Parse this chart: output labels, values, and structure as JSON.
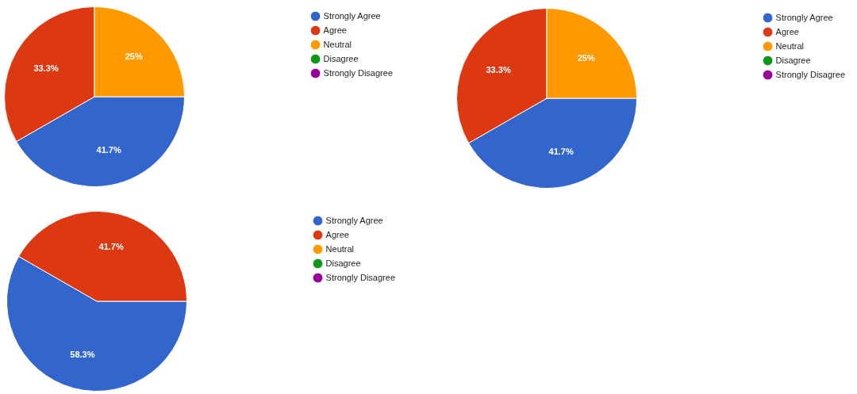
{
  "chart_data": [
    {
      "type": "pie",
      "categories": [
        "Strongly Agree",
        "Agree",
        "Neutral",
        "Disagree",
        "Strongly Disagree"
      ],
      "values": [
        41.7,
        33.3,
        25,
        0,
        0
      ],
      "colors": [
        "#3366cc",
        "#dc3912",
        "#ff9900",
        "#109618",
        "#990099"
      ],
      "value_labels": [
        "41.7%",
        "33.3%",
        "25%",
        null,
        null
      ],
      "legend": "top right"
    },
    {
      "type": "pie",
      "categories": [
        "Strongly Agree",
        "Agree",
        "Neutral",
        "Disagree",
        "Strongly Disagree"
      ],
      "values": [
        41.7,
        33.3,
        25,
        0,
        0
      ],
      "colors": [
        "#3366cc",
        "#dc3912",
        "#ff9900",
        "#109618",
        "#990099"
      ],
      "value_labels": [
        "41.7%",
        "33.3%",
        "25%",
        null,
        null
      ],
      "legend": "top right"
    },
    {
      "type": "pie",
      "categories": [
        "Strongly Agree",
        "Agree",
        "Neutral",
        "Disagree",
        "Strongly Disagree"
      ],
      "values": [
        58.3,
        41.7,
        0,
        0,
        0
      ],
      "colors": [
        "#3366cc",
        "#dc3912",
        "#ff9900",
        "#109618",
        "#990099"
      ],
      "value_labels": [
        "58.3%",
        "41.7%",
        null,
        null,
        null
      ],
      "legend": "top right"
    }
  ]
}
